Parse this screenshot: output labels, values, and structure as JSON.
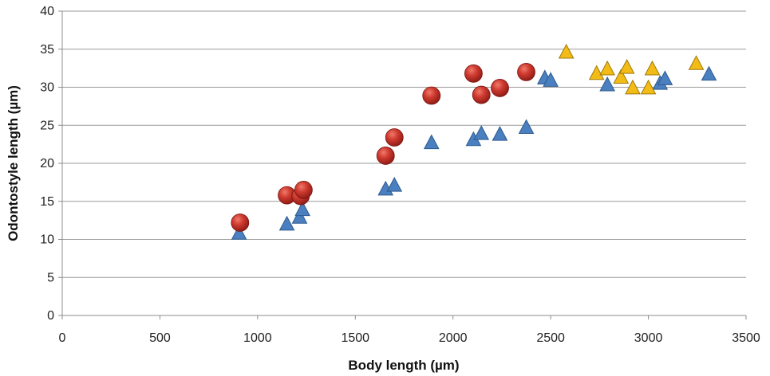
{
  "chart_data": {
    "type": "scatter",
    "title": "",
    "xlabel": "Body length (µm)",
    "ylabel": "Odontostyle length (µm)",
    "xlim": [
      0,
      3500
    ],
    "ylim": [
      0,
      40
    ],
    "x_ticks": [
      0,
      500,
      1000,
      1500,
      2000,
      2500,
      3000,
      3500
    ],
    "y_ticks": [
      0,
      5,
      10,
      15,
      20,
      25,
      30,
      35,
      40
    ],
    "grid": "horizontal",
    "legend": "none",
    "series": [
      {
        "marker": "sphere",
        "color": "#c0302a",
        "points": [
          [
            910,
            12.2
          ],
          [
            1150,
            15.8
          ],
          [
            1220,
            15.7
          ],
          [
            1235,
            16.5
          ],
          [
            1655,
            21.0
          ],
          [
            1700,
            23.4
          ],
          [
            1890,
            28.9
          ],
          [
            2105,
            31.8
          ],
          [
            2145,
            29.0
          ],
          [
            2240,
            29.9
          ],
          [
            2375,
            32.0
          ]
        ]
      },
      {
        "marker": "triangle",
        "color": "#4a7fc0",
        "points": [
          [
            905,
            10.7
          ],
          [
            1150,
            11.9
          ],
          [
            1215,
            12.8
          ],
          [
            1230,
            13.8
          ],
          [
            1655,
            16.5
          ],
          [
            1700,
            17.0
          ],
          [
            1890,
            22.6
          ],
          [
            2105,
            23.0
          ],
          [
            2145,
            23.8
          ],
          [
            2240,
            23.7
          ],
          [
            2375,
            24.6
          ],
          [
            2470,
            31.1
          ],
          [
            2500,
            30.8
          ],
          [
            2790,
            30.2
          ],
          [
            3060,
            30.4
          ],
          [
            3085,
            31.0
          ],
          [
            3310,
            31.6
          ]
        ]
      },
      {
        "marker": "triangle",
        "color": "#f2bb16",
        "points": [
          [
            2580,
            34.5
          ],
          [
            2735,
            31.7
          ],
          [
            2790,
            32.3
          ],
          [
            2860,
            31.2
          ],
          [
            2890,
            32.5
          ],
          [
            2920,
            29.8
          ],
          [
            3000,
            29.8
          ],
          [
            3020,
            32.3
          ],
          [
            3245,
            33.0
          ]
        ]
      }
    ]
  }
}
